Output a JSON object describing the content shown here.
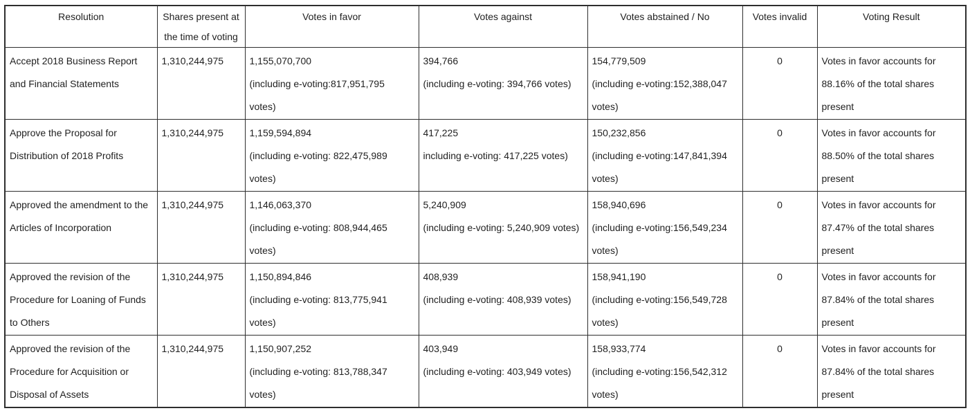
{
  "table": {
    "headers": [
      "Resolution",
      "Shares present at\nthe time of voting",
      "Votes in favor",
      "Votes against",
      "Votes abstained / No",
      "Votes invalid",
      "Voting Result"
    ],
    "rows": [
      {
        "cells": [
          "Accept 2018 Business Report\nand Financial Statements",
          "1,310,244,975",
          "1,155,070,700\n(including e-voting:817,951,795\nvotes)",
          "394,766\n(including e-voting: 394,766 votes)",
          "154,779,509\n(including e-voting:152,388,047\nvotes)",
          "0",
          "Votes in favor accounts for\n88.16% of the total shares\npresent"
        ]
      },
      {
        "cells": [
          "Approve the Proposal for\nDistribution of 2018 Profits",
          "1,310,244,975",
          "1,159,594,894\n(including e-voting: 822,475,989\nvotes)",
          "417,225\nincluding e-voting: 417,225 votes)",
          "150,232,856\n(including e-voting:147,841,394\nvotes)",
          "0",
          "Votes in favor accounts for\n88.50% of the total shares\npresent"
        ]
      },
      {
        "cells": [
          "Approved the amendment to the\nArticles of Incorporation",
          "1,310,244,975",
          "1,146,063,370\n(including e-voting: 808,944,465\nvotes)",
          "5,240,909\n(including e-voting: 5,240,909 votes)",
          "158,940,696\n(including e-voting:156,549,234\nvotes)",
          "0",
          "Votes in favor accounts for\n87.47% of the total shares\npresent"
        ]
      },
      {
        "cells": [
          "Approved the revision of the\nProcedure for Loaning of Funds\nto Others",
          "1,310,244,975",
          "1,150,894,846\n(including e-voting: 813,775,941\nvotes)",
          "408,939\n(including e-voting: 408,939 votes)",
          "158,941,190\n(including e-voting:156,549,728\nvotes)",
          "0",
          "Votes in favor accounts for\n87.84% of the total shares\npresent"
        ]
      },
      {
        "cells": [
          "Approved the revision of the\nProcedure for Acquisition or\nDisposal of Assets",
          "1,310,244,975",
          "1,150,907,252\n(including e-voting: 813,788,347\nvotes)",
          "403,949\n(including e-voting: 403,949 votes)",
          "158,933,774\n(including e-voting:156,542,312\nvotes)",
          "0",
          "Votes in favor accounts for\n87.84% of the total shares\npresent"
        ]
      }
    ]
  }
}
